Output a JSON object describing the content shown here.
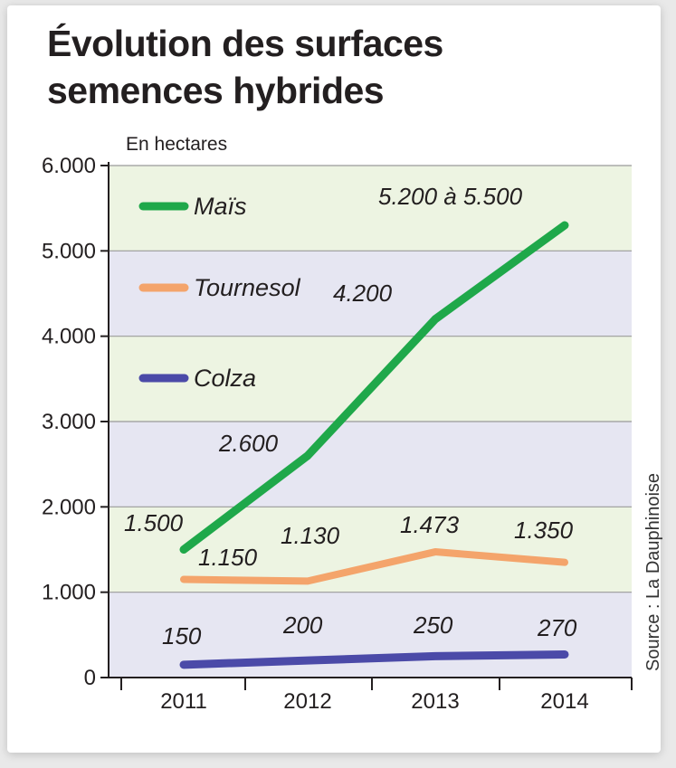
{
  "chart_data": {
    "type": "line",
    "title": "Évolution des surfaces semences hybrides",
    "title_lines": [
      "Évolution des surfaces",
      "semences hybrides"
    ],
    "unit_label": "En hectares",
    "source": "Source : La Dauphinoise",
    "categories": [
      "2011",
      "2012",
      "2013",
      "2014"
    ],
    "ylim": [
      0,
      6000
    ],
    "yticks": [
      {
        "value": 0,
        "label": "0"
      },
      {
        "value": 1000,
        "label": "1.000"
      },
      {
        "value": 2000,
        "label": "2.000"
      },
      {
        "value": 3000,
        "label": "3.000"
      },
      {
        "value": 4000,
        "label": "4.000"
      },
      {
        "value": 5000,
        "label": "5.000"
      },
      {
        "value": 6000,
        "label": "6.000"
      }
    ],
    "grid": true,
    "legend_position": "top-left",
    "series": [
      {
        "name": "Maïs",
        "color": "#1fa84a",
        "values": [
          1500,
          2600,
          4200,
          5300
        ],
        "labels": [
          "1.500",
          "2.600",
          "4.200",
          "5.200 à 5.500"
        ]
      },
      {
        "name": "Tournesol",
        "color": "#f4a46b",
        "values": [
          1150,
          1130,
          1473,
          1350
        ],
        "labels": [
          "1.150",
          "1.130",
          "1.473",
          "1.350"
        ]
      },
      {
        "name": "Colza",
        "color": "#4b4aa8",
        "values": [
          150,
          200,
          250,
          270
        ],
        "labels": [
          "150",
          "200",
          "250",
          "270"
        ]
      }
    ],
    "band_colors": [
      "#e6e6f2",
      "#edf4e2"
    ]
  }
}
